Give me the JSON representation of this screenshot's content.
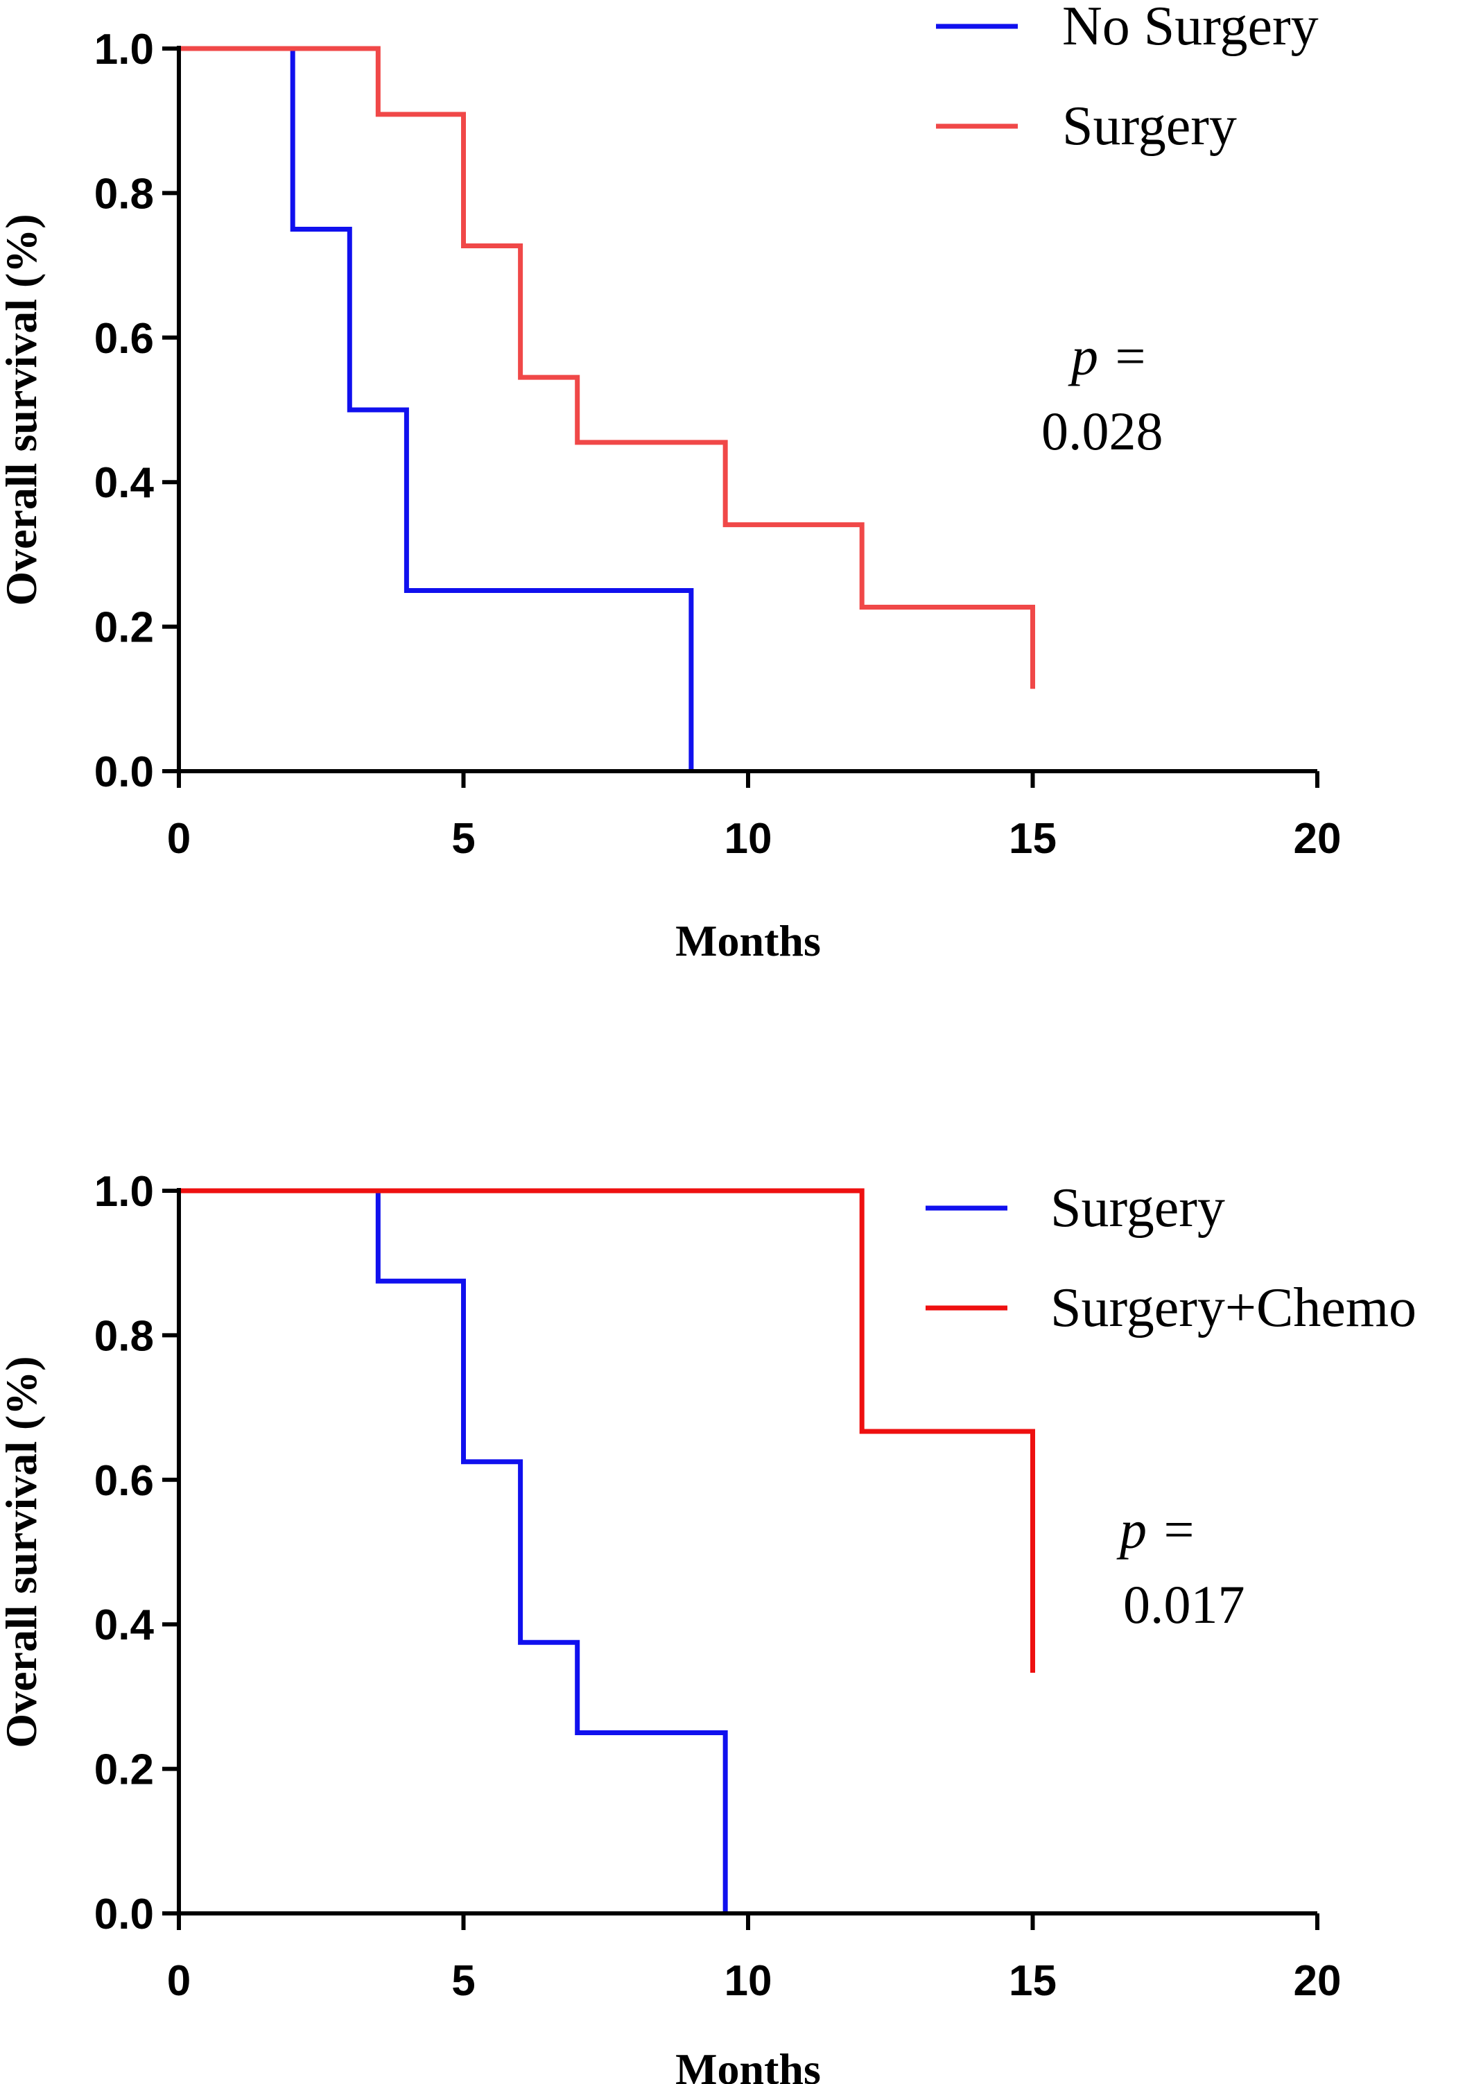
{
  "chart_data": [
    {
      "type": "line",
      "subtype": "kaplan-meier",
      "title": "",
      "xlabel": "Months",
      "ylabel": "Overall survival (%)",
      "xlim": [
        0,
        20
      ],
      "ylim": [
        0,
        1.0
      ],
      "x_ticks": [
        "0",
        "5",
        "10",
        "15",
        "20"
      ],
      "y_ticks": [
        "0.0",
        "0.2",
        "0.4",
        "0.6",
        "0.8",
        "1.0"
      ],
      "legend_position": "top-right",
      "annotation": {
        "label": "p =",
        "value": "0.028"
      },
      "series": [
        {
          "name": "No Surgery",
          "color": "#1010ee",
          "steps": [
            [
              0,
              1.0
            ],
            [
              2,
              0.75
            ],
            [
              3,
              0.5
            ],
            [
              4,
              0.25
            ],
            [
              9,
              0.0
            ]
          ],
          "end_x": 9
        },
        {
          "name": "Surgery",
          "color": "#f04848",
          "steps": [
            [
              0,
              1.0
            ],
            [
              3.5,
              0.909
            ],
            [
              5,
              0.727
            ],
            [
              6,
              0.545
            ],
            [
              7,
              0.455
            ],
            [
              9.6,
              0.341
            ],
            [
              12,
              0.227
            ],
            [
              15,
              0.114
            ]
          ],
          "end_x": 15
        }
      ]
    },
    {
      "type": "line",
      "subtype": "kaplan-meier",
      "title": "",
      "xlabel": "Months",
      "ylabel": "Overall survival (%)",
      "xlim": [
        0,
        20
      ],
      "ylim": [
        0,
        1.0
      ],
      "x_ticks": [
        "0",
        "5",
        "10",
        "15",
        "20"
      ],
      "y_ticks": [
        "0.0",
        "0.2",
        "0.4",
        "0.6",
        "0.8",
        "1.0"
      ],
      "legend_position": "top-right",
      "annotation": {
        "label": "p =",
        "value": "0.017"
      },
      "series": [
        {
          "name": "Surgery",
          "color": "#1010ee",
          "steps": [
            [
              0,
              1.0
            ],
            [
              3.5,
              0.875
            ],
            [
              5,
              0.625
            ],
            [
              6,
              0.375
            ],
            [
              7,
              0.25
            ],
            [
              9.6,
              0.0
            ]
          ],
          "end_x": 9.6
        },
        {
          "name": "Surgery+Chemo",
          "color": "#ee1010",
          "steps": [
            [
              0,
              1.0
            ],
            [
              12,
              0.667
            ],
            [
              15,
              0.333
            ]
          ],
          "end_x": 15
        }
      ]
    }
  ]
}
